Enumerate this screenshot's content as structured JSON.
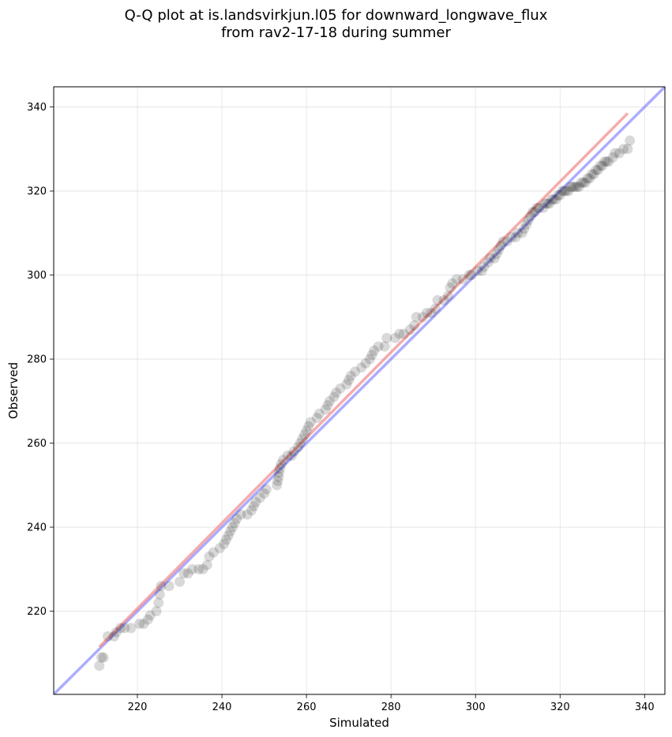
{
  "chart_data": {
    "type": "scatter",
    "title_line1": "Q-Q plot at is.landsvirkjun.l05 for downward_longwave_flux",
    "title_line2": "from rav2-17-18 during summer",
    "xlabel": "Simulated",
    "ylabel": "Observed",
    "xlim": [
      200.2,
      344.8
    ],
    "ylim": [
      200.2,
      344.8
    ],
    "xticks": [
      220,
      240,
      260,
      280,
      300,
      320,
      340
    ],
    "yticks": [
      220,
      240,
      260,
      280,
      300,
      320,
      340
    ],
    "grid": true,
    "colors": {
      "points": "#000000",
      "fit_line": "#f08080",
      "identity_line": "#8080ff"
    },
    "fit_line": {
      "x": [
        211.0,
        336.0
      ],
      "y": [
        211.5,
        338.5
      ]
    },
    "identity_line": {
      "x": [
        200.2,
        344.8
      ],
      "y": [
        200.2,
        344.8
      ]
    },
    "quantiles": [
      [
        211.0,
        207.0
      ],
      [
        211.5,
        209.0
      ],
      [
        212.0,
        209.0
      ],
      [
        213.0,
        214.0
      ],
      [
        214.5,
        214.0
      ],
      [
        215.0,
        215.0
      ],
      [
        216.0,
        216.0
      ],
      [
        217.0,
        216.0
      ],
      [
        218.5,
        216.0
      ],
      [
        220.5,
        217.0
      ],
      [
        221.5,
        217.0
      ],
      [
        222.5,
        218.0
      ],
      [
        223.0,
        219.0
      ],
      [
        224.5,
        220.0
      ],
      [
        225.0,
        222.0
      ],
      [
        225.3,
        224.0
      ],
      [
        225.6,
        226.0
      ],
      [
        227.5,
        226.0
      ],
      [
        230.0,
        227.0
      ],
      [
        231.0,
        229.0
      ],
      [
        232.0,
        229.0
      ],
      [
        233.0,
        230.0
      ],
      [
        234.5,
        230.0
      ],
      [
        235.5,
        230.0
      ],
      [
        236.5,
        231.0
      ],
      [
        237.0,
        233.0
      ],
      [
        238.0,
        234.0
      ],
      [
        239.5,
        235.0
      ],
      [
        240.5,
        236.0
      ],
      [
        241.0,
        237.0
      ],
      [
        241.5,
        238.0
      ],
      [
        242.0,
        239.0
      ],
      [
        242.5,
        240.0
      ],
      [
        243.0,
        241.0
      ],
      [
        243.5,
        242.0
      ],
      [
        244.5,
        243.0
      ],
      [
        246.0,
        243.0
      ],
      [
        247.0,
        244.0
      ],
      [
        247.5,
        245.0
      ],
      [
        248.0,
        246.0
      ],
      [
        249.0,
        247.0
      ],
      [
        250.0,
        248.0
      ],
      [
        250.5,
        249.0
      ],
      [
        253.0,
        250.0
      ],
      [
        253.2,
        251.0
      ],
      [
        253.4,
        252.0
      ],
      [
        253.5,
        253.0
      ],
      [
        253.7,
        254.0
      ],
      [
        254.0,
        255.0
      ],
      [
        254.5,
        256.0
      ],
      [
        255.5,
        257.0
      ],
      [
        256.5,
        257.0
      ],
      [
        257.0,
        258.0
      ],
      [
        258.0,
        259.0
      ],
      [
        258.5,
        260.0
      ],
      [
        259.0,
        261.0
      ],
      [
        259.5,
        262.0
      ],
      [
        260.0,
        263.0
      ],
      [
        260.5,
        264.0
      ],
      [
        261.0,
        265.0
      ],
      [
        262.5,
        266.0
      ],
      [
        263.0,
        267.0
      ],
      [
        264.5,
        268.0
      ],
      [
        265.0,
        269.0
      ],
      [
        265.5,
        270.0
      ],
      [
        266.5,
        271.0
      ],
      [
        267.0,
        272.0
      ],
      [
        268.0,
        273.0
      ],
      [
        269.5,
        274.0
      ],
      [
        270.0,
        275.0
      ],
      [
        270.5,
        276.0
      ],
      [
        271.5,
        277.0
      ],
      [
        273.0,
        278.0
      ],
      [
        274.0,
        279.0
      ],
      [
        275.0,
        280.0
      ],
      [
        275.5,
        281.0
      ],
      [
        276.0,
        282.0
      ],
      [
        277.0,
        283.0
      ],
      [
        278.5,
        283.0
      ],
      [
        279.0,
        285.0
      ],
      [
        281.0,
        285.0
      ],
      [
        282.0,
        286.0
      ],
      [
        283.0,
        286.0
      ],
      [
        284.5,
        287.0
      ],
      [
        285.5,
        288.0
      ],
      [
        286.0,
        290.0
      ],
      [
        287.5,
        290.0
      ],
      [
        288.5,
        291.0
      ],
      [
        289.5,
        291.0
      ],
      [
        290.5,
        292.0
      ],
      [
        291.0,
        294.0
      ],
      [
        292.5,
        294.0
      ],
      [
        293.5,
        295.0
      ],
      [
        294.0,
        297.0
      ],
      [
        294.5,
        298.0
      ],
      [
        295.5,
        299.0
      ],
      [
        297.0,
        299.0
      ],
      [
        298.5,
        300.0
      ],
      [
        299.0,
        300.0
      ],
      [
        300.5,
        301.0
      ],
      [
        301.5,
        301.0
      ],
      [
        302.0,
        302.0
      ],
      [
        303.0,
        303.0
      ],
      [
        303.5,
        304.0
      ],
      [
        304.5,
        304.0
      ],
      [
        305.0,
        305.0
      ],
      [
        305.5,
        306.0
      ],
      [
        306.0,
        307.0
      ],
      [
        306.5,
        308.0
      ],
      [
        307.5,
        308.0
      ],
      [
        308.5,
        309.0
      ],
      [
        309.5,
        309.0
      ],
      [
        310.0,
        310.0
      ],
      [
        311.0,
        310.0
      ],
      [
        311.5,
        311.0
      ],
      [
        312.0,
        312.0
      ],
      [
        312.5,
        313.0
      ],
      [
        313.0,
        314.0
      ],
      [
        313.5,
        315.0
      ],
      [
        314.0,
        315.0
      ],
      [
        314.5,
        316.0
      ],
      [
        315.0,
        316.0
      ],
      [
        316.0,
        316.0
      ],
      [
        316.5,
        317.0
      ],
      [
        317.0,
        317.0
      ],
      [
        317.5,
        317.0
      ],
      [
        318.0,
        318.0
      ],
      [
        318.5,
        318.0
      ],
      [
        319.0,
        318.0
      ],
      [
        319.5,
        319.0
      ],
      [
        320.0,
        319.0
      ],
      [
        320.5,
        320.0
      ],
      [
        321.0,
        320.0
      ],
      [
        321.5,
        320.0
      ],
      [
        322.0,
        320.0
      ],
      [
        322.5,
        321.0
      ],
      [
        323.0,
        321.0
      ],
      [
        323.5,
        321.0
      ],
      [
        324.0,
        321.0
      ],
      [
        324.5,
        321.0
      ],
      [
        325.0,
        322.0
      ],
      [
        325.5,
        322.0
      ],
      [
        326.0,
        322.0
      ],
      [
        326.5,
        323.0
      ],
      [
        327.0,
        323.0
      ],
      [
        327.5,
        324.0
      ],
      [
        328.0,
        324.0
      ],
      [
        328.5,
        325.0
      ],
      [
        329.0,
        325.0
      ],
      [
        329.5,
        326.0
      ],
      [
        330.0,
        326.0
      ],
      [
        330.5,
        327.0
      ],
      [
        331.0,
        327.0
      ],
      [
        331.5,
        327.0
      ],
      [
        332.5,
        328.0
      ],
      [
        333.0,
        329.0
      ],
      [
        334.0,
        329.0
      ],
      [
        335.0,
        330.0
      ],
      [
        336.0,
        330.0
      ],
      [
        336.5,
        332.0
      ]
    ]
  }
}
